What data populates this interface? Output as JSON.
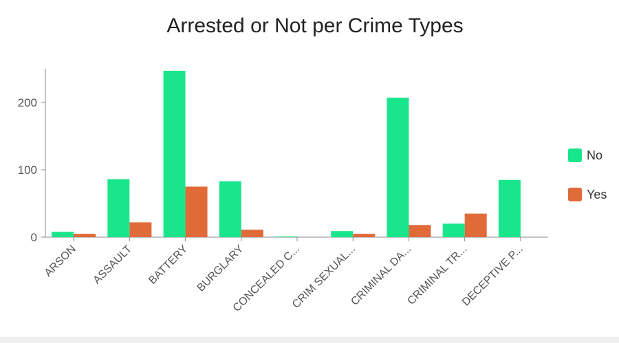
{
  "chart_data": {
    "type": "bar",
    "title": "Arrested or Not per Crime Types",
    "xlabel": "",
    "ylabel": "",
    "ylim": [
      0,
      250
    ],
    "yticks": [
      0,
      100,
      200
    ],
    "categories": [
      "ARSON",
      "ASSAULT",
      "BATTERY",
      "BURGLARY",
      "CONCEALED C...",
      "CRIM SEXUAL...",
      "CRIMINAL DA...",
      "CRIMINAL TR...",
      "DECEPTIVE P..."
    ],
    "series": [
      {
        "name": "No",
        "color": "#19e68c",
        "values": [
          8,
          86,
          247,
          83,
          1,
          9,
          207,
          20,
          85
        ]
      },
      {
        "name": "Yes",
        "color": "#e06a38",
        "values": [
          5,
          22,
          75,
          11,
          0,
          5,
          18,
          35,
          0
        ]
      }
    ],
    "legend_position": "right",
    "grid": false
  }
}
